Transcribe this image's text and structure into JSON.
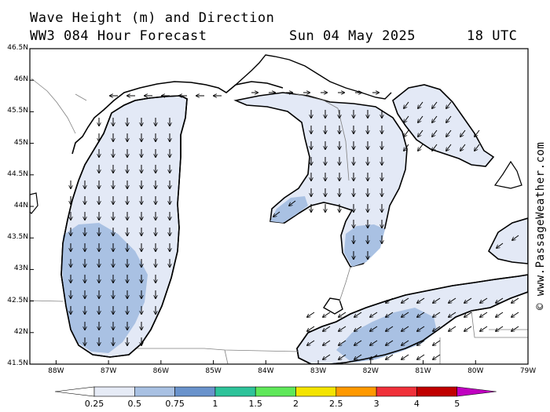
{
  "header": {
    "title_line1": "Wave Height (m) and Direction",
    "title_line2": "WW3 084 Hour Forecast",
    "date": "Sun 04 May 2025",
    "time": "18 UTC"
  },
  "credit": "© www.PassageWeather.com",
  "axes": {
    "lat_labels": [
      "46.5N",
      "46N",
      "45.5N",
      "45N",
      "44.5N",
      "44N",
      "43.5N",
      "43N",
      "42.5N",
      "42N",
      "41.5N"
    ],
    "lon_labels": [
      "88W",
      "87W",
      "86W",
      "85W",
      "84W",
      "83W",
      "82W",
      "81W",
      "80W",
      "79W"
    ],
    "lat_range": [
      41.5,
      46.5
    ],
    "lon_range": [
      -88.5,
      -79.0
    ]
  },
  "legend": {
    "labels": [
      "0.25",
      "0.5",
      "0.75",
      "1",
      "1.5",
      "2",
      "2.5",
      "3",
      "4",
      "5"
    ],
    "colors": [
      "#ffffff",
      "#e6ebf6",
      "#a9c1e3",
      "#6a93cc",
      "#2ec39a",
      "#5fe85a",
      "#f4e400",
      "#ff9900",
      "#f0313a",
      "#c00000",
      "#c000c0"
    ]
  },
  "map_colors": {
    "light_wave": "#e3e9f6",
    "mid_wave": "#a9c1e3",
    "coast": "#000000",
    "border": "#808080"
  }
}
